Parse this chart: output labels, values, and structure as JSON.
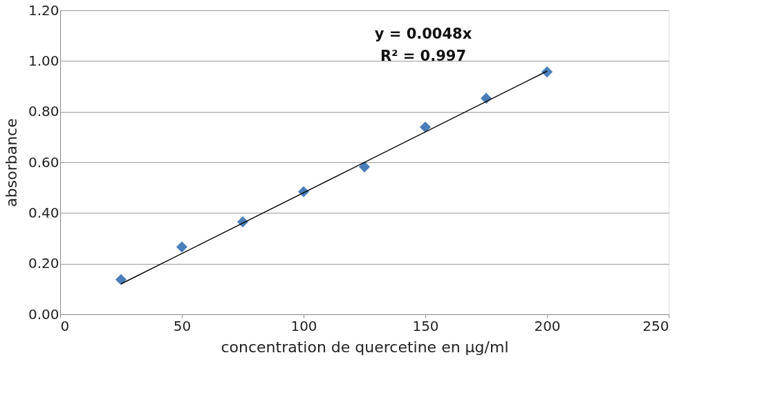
{
  "chart_data": {
    "type": "scatter",
    "xlabel": "concentration de quercetine en µg/ml",
    "ylabel": "absorbance",
    "x": [
      25,
      50,
      75,
      100,
      125,
      150,
      175,
      200
    ],
    "series": [
      {
        "color": "#4a7ebb",
        "marker": "diamond",
        "values": [
          0.137,
          0.266,
          0.365,
          0.484,
          0.582,
          0.739,
          0.853,
          0.957
        ]
      },
      {
        "type": "line",
        "color": "#000000",
        "marker": "none",
        "x": [
          25,
          200
        ],
        "values": [
          0.12,
          0.96
        ]
      }
    ],
    "xlim": [
      0,
      250
    ],
    "xticks": [
      0,
      50,
      100,
      150,
      200,
      250
    ],
    "ylim": [
      0,
      1.2
    ],
    "yticks": [
      {
        "value": 0,
        "label": "0.00"
      },
      {
        "value": 0.2,
        "label": "0.20"
      },
      {
        "value": 0.4,
        "label": "0.40"
      },
      {
        "value": 0.6,
        "label": "0.60"
      },
      {
        "value": 0.8,
        "label": "0.80"
      },
      {
        "value": 1.0,
        "label": "1.00"
      },
      {
        "value": 1.2,
        "label": "1.20"
      }
    ],
    "grid": "y",
    "annotations": [
      "y = 0.0048x",
      "R² = 0.997"
    ]
  }
}
